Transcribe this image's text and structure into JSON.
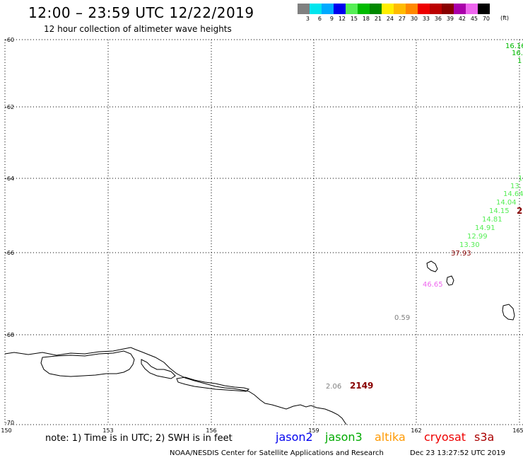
{
  "header": {
    "title": "12:00 – 23:59 UTC 12/22/2019",
    "subtitle": "12 hour collection of altimeter wave heights"
  },
  "color_scale": {
    "unit": "(ft)",
    "bins": [
      {
        "label": "3",
        "color": "#808080"
      },
      {
        "label": "6",
        "color": "#00e5ee"
      },
      {
        "label": "9",
        "color": "#00aaff"
      },
      {
        "label": "12",
        "color": "#0000ee"
      },
      {
        "label": "15",
        "color": "#55ee55"
      },
      {
        "label": "18",
        "color": "#00bb00"
      },
      {
        "label": "21",
        "color": "#008800"
      },
      {
        "label": "24",
        "color": "#ffee00"
      },
      {
        "label": "27",
        "color": "#ffbb00"
      },
      {
        "label": "30",
        "color": "#ff8800"
      },
      {
        "label": "33",
        "color": "#ee0000"
      },
      {
        "label": "36",
        "color": "#bb0000"
      },
      {
        "label": "39",
        "color": "#880000"
      },
      {
        "label": "42",
        "color": "#aa00aa"
      },
      {
        "label": "45",
        "color": "#ee66ee"
      },
      {
        "label": "70",
        "color": "#000000"
      }
    ]
  },
  "axes": {
    "lat_labels": [
      "-60",
      "-62",
      "-64",
      "-66",
      "-68",
      "-70"
    ],
    "lon_labels": [
      "150",
      "153",
      "156",
      "159",
      "162",
      "165"
    ]
  },
  "observations": [
    {
      "text": "16.16",
      "color": "#00bb00"
    },
    {
      "text": "16.",
      "color": "#00bb00"
    },
    {
      "text": "1",
      "color": "#00bb00"
    },
    {
      "text": "1.",
      "color": "#55ee55"
    },
    {
      "text": "13.",
      "color": "#55ee55"
    },
    {
      "text": "14.64",
      "color": "#55ee55"
    },
    {
      "text": "14.04",
      "color": "#55ee55"
    },
    {
      "text": "14.15",
      "color": "#55ee55"
    },
    {
      "text": "2",
      "color": "#880000"
    },
    {
      "text": "14.81",
      "color": "#55ee55"
    },
    {
      "text": "14.91",
      "color": "#55ee55"
    },
    {
      "text": "12.99",
      "color": "#55ee55"
    },
    {
      "text": "13.30",
      "color": "#55ee55"
    },
    {
      "text": "37.93",
      "color": "#880000"
    },
    {
      "text": "46.65",
      "color": "#ee66ee"
    },
    {
      "text": "0.59",
      "color": "#808080"
    },
    {
      "text": "2.06",
      "color": "#808080"
    },
    {
      "text": "2149",
      "color": "#880000"
    }
  ],
  "footer": {
    "note": "note: 1) Time is in UTC; 2) SWH is in feet",
    "satellites": [
      {
        "name": "jason2",
        "color": "#0000ee"
      },
      {
        "name": "jason3",
        "color": "#00aa00"
      },
      {
        "name": "altika",
        "color": "#ff9900"
      },
      {
        "name": "cryosat",
        "color": "#ee0000"
      },
      {
        "name": "s3a",
        "color": "#aa0000"
      }
    ],
    "credit": "NOAA/NESDIS Center for Satellite Applications and Research",
    "timestamp": "Dec 23 13:27:52 UTC 2019"
  }
}
